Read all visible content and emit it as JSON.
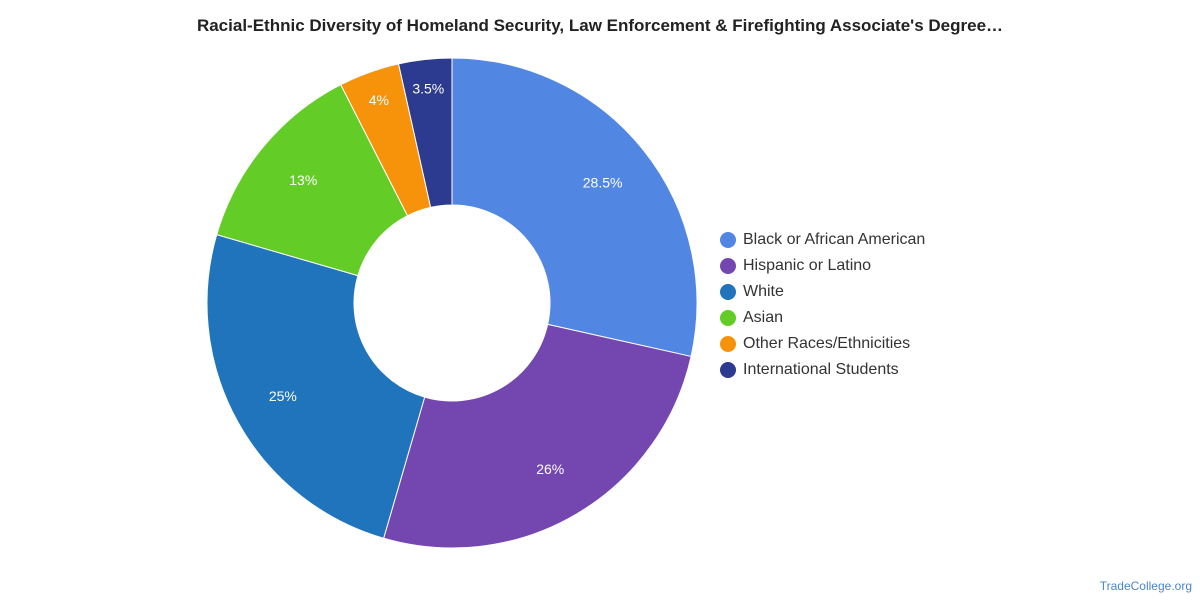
{
  "chart_data": {
    "type": "pie",
    "title": "Racial-Ethnic Diversity of Homeland Security, Law Enforcement & Firefighting Associate's Degree…",
    "style": "donut",
    "legend_position": "right",
    "categories": [
      "Black or African American",
      "Hispanic or Latino",
      "White",
      "Asian",
      "Other Races/Ethnicities",
      "International Students"
    ],
    "values": [
      28.5,
      26,
      25,
      13,
      4,
      3.5
    ],
    "data_labels": [
      "28.5%",
      "26%",
      "25%",
      "13%",
      "4%",
      "3.5%"
    ],
    "colors": [
      "#5286e3",
      "#7447b0",
      "#1f74bc",
      "#63cc27",
      "#f7930a",
      "#2c3a8f"
    ]
  },
  "watermark": "TradeCollege.org"
}
